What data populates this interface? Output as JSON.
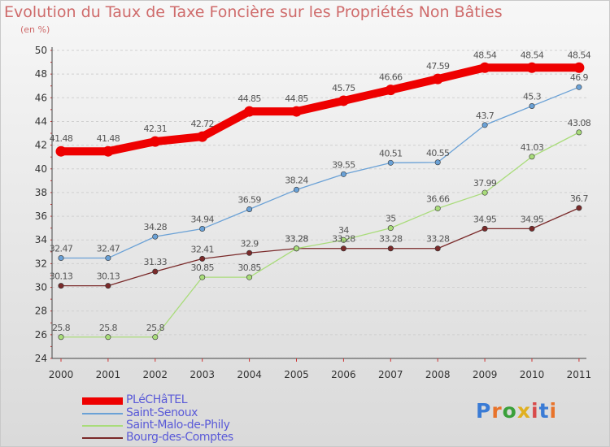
{
  "title": "Evolution du Taux de Taxe Foncière sur les Propriétés Non Bâties",
  "unit_label": "(en %)",
  "logo_text": "Proxiti",
  "chart_data": {
    "type": "line",
    "x": [
      "2000",
      "2001",
      "2002",
      "2003",
      "2004",
      "2005",
      "2006",
      "2007",
      "2008",
      "2009",
      "2010",
      "2011"
    ],
    "ylim": [
      24,
      50
    ],
    "yticks": [
      24,
      26,
      28,
      30,
      32,
      34,
      36,
      38,
      40,
      42,
      44,
      46,
      48,
      50
    ],
    "grid": "horizontal dashed",
    "legend_position": "bottom-left",
    "series": [
      {
        "name": "PLéCHâTEL",
        "color": "#ee0000",
        "values": [
          41.48,
          41.48,
          42.31,
          42.72,
          44.85,
          44.85,
          45.75,
          46.66,
          47.59,
          48.54,
          48.54,
          48.54
        ],
        "labels": [
          "41.48",
          "41.48",
          "42.31",
          "42.72",
          "44.85",
          "44.85",
          "45.75",
          "46.66",
          "47.59",
          "48.54",
          "48.54",
          "48.54"
        ]
      },
      {
        "name": "Saint-Senoux",
        "color": "#6aa1d6",
        "values": [
          32.47,
          32.47,
          34.28,
          34.94,
          36.59,
          38.24,
          39.55,
          40.51,
          40.55,
          43.7,
          45.3,
          46.9
        ],
        "labels": [
          "32.47",
          "32.47",
          "34.28",
          "34.94",
          "36.59",
          "38.24",
          "39.55",
          "40.51",
          "40.55",
          "43.7",
          "45.3",
          "46.9"
        ]
      },
      {
        "name": "Saint-Malo-de-Phily",
        "color": "#a9dc7a",
        "values": [
          25.8,
          25.8,
          25.8,
          30.85,
          30.85,
          33.28,
          34,
          35,
          36.66,
          37.99,
          41.03,
          43.08
        ],
        "labels": [
          "25.8",
          "25.8",
          "25.8",
          "30.85",
          "30.85",
          "33.28",
          "34",
          "35",
          "36.66",
          "37.99",
          "41.03",
          "43.08"
        ]
      },
      {
        "name": "Bourg-des-Comptes",
        "color": "#7a2a2a",
        "values": [
          30.13,
          30.13,
          31.33,
          32.41,
          32.9,
          33.28,
          33.28,
          33.28,
          33.28,
          34.95,
          34.95,
          36.7
        ],
        "labels": [
          "30.13",
          "30.13",
          "31.33",
          "32.41",
          "32.9",
          "33.28",
          "33.28",
          "33.28",
          "33.28",
          "34.95",
          "34.95",
          "36.7"
        ]
      }
    ]
  }
}
